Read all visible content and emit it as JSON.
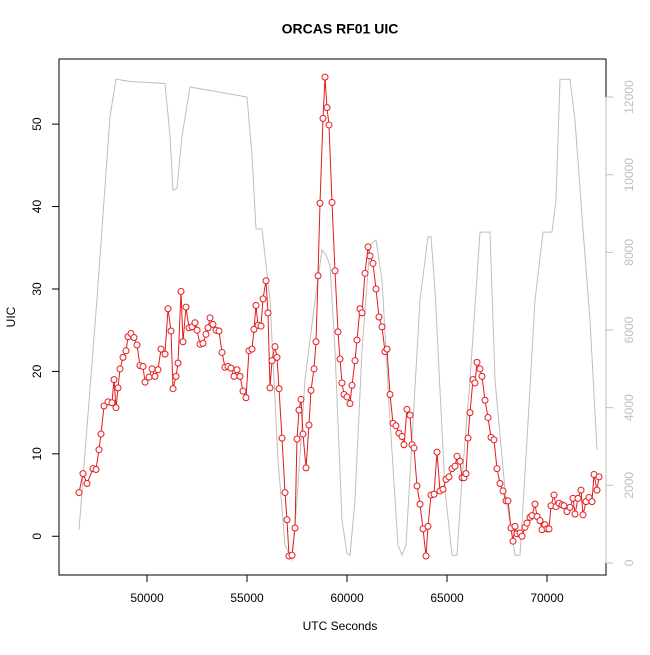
{
  "chart_data": {
    "type": "line",
    "title": "ORCAS RF01 UIC",
    "xlabel": "UTC Seconds",
    "ylabel": "UIC",
    "xlim": [
      45600,
      72950
    ],
    "xticks": [
      50000,
      55000,
      60000,
      65000,
      70000
    ],
    "ylim": [
      -4.7,
      57.9
    ],
    "yticks": [
      0,
      10,
      20,
      30,
      40,
      50
    ],
    "y2lim": [
      -310,
      12980
    ],
    "y2ticks": [
      0,
      2000,
      4000,
      6000,
      8000,
      10000,
      12000
    ],
    "series": [
      {
        "color": "#e41a1c",
        "markers": true,
        "x": [
          46600,
          46800,
          47000,
          47300,
          47450,
          47600,
          47700,
          47850,
          48050,
          48250,
          48350,
          48450,
          48550,
          48650,
          48800,
          48950,
          49050,
          49200,
          49350,
          49500,
          49650,
          49800,
          49900,
          50100,
          50250,
          50400,
          50550,
          50700,
          50900,
          51050,
          51200,
          51300,
          51450,
          51550,
          51700,
          51800,
          51950,
          52100,
          52250,
          52400,
          52500,
          52650,
          52800,
          52950,
          53050,
          53150,
          53300,
          53450,
          53600,
          53750,
          53900,
          54050,
          54200,
          54350,
          54500,
          54650,
          54800,
          54950,
          55100,
          55250,
          55350,
          55450,
          55550,
          55700,
          55800,
          55950,
          56050,
          56150,
          56250,
          56400,
          56500,
          56600,
          56750,
          56900,
          57000,
          57100,
          57250,
          57400,
          57500,
          57600,
          57700,
          57800,
          57950,
          58100,
          58200,
          58350,
          58450,
          58550,
          58650,
          58800,
          58900,
          59000,
          59100,
          59250,
          59400,
          59550,
          59650,
          59750,
          59850,
          60000,
          60150,
          60250,
          60400,
          60500,
          60650,
          60750,
          60900,
          61050,
          61150,
          61300,
          61450,
          61600,
          61750,
          61900,
          62000,
          62150,
          62300,
          62450,
          62600,
          62750,
          62850,
          63000,
          63150,
          63250,
          63350,
          63500,
          63650,
          63800,
          63950,
          64050,
          64200,
          64350,
          64500,
          64650,
          64800,
          64950,
          65100,
          65250,
          65400,
          65500,
          65650,
          65750,
          65850,
          65950,
          66050,
          66150,
          66300,
          66400,
          66500,
          66650,
          66750,
          66900,
          67050,
          67200,
          67350,
          67500,
          67650,
          67800,
          67950,
          68050,
          68200,
          68300,
          68400,
          68500,
          68650,
          68750,
          68900,
          69000,
          69150,
          69250,
          69400,
          69500,
          69650,
          69750,
          69900,
          70000,
          70100,
          70200,
          70350,
          70450,
          70600,
          70750,
          70850,
          71000,
          71150,
          71300,
          71400,
          71550,
          71700,
          71800,
          71950,
          72100,
          72250,
          72350,
          72500,
          72600
        ],
        "values": [
          5.3,
          7.6,
          6.4,
          8.2,
          8.1,
          10.5,
          12.4,
          15.8,
          16.3,
          16.2,
          19,
          15.6,
          18,
          20.3,
          21.7,
          22.5,
          24.2,
          24.6,
          24.1,
          23.2,
          20.7,
          20.6,
          18.7,
          19.3,
          20.3,
          19.4,
          20.2,
          22.7,
          22.1,
          27.6,
          24.9,
          17.9,
          19.4,
          21,
          29.7,
          23.6,
          27.8,
          25.3,
          25.4,
          25.9,
          25,
          23.3,
          23.4,
          24.5,
          25.3,
          26.5,
          25.7,
          25,
          24.9,
          22.3,
          20.5,
          20.6,
          20.4,
          19.4,
          20.2,
          19.4,
          17.6,
          16.8,
          22.5,
          22.7,
          25.1,
          28,
          25.6,
          25.5,
          28.8,
          31,
          27.1,
          18,
          21.3,
          23,
          21.7,
          17.9,
          11.9,
          5.3,
          2,
          -2.4,
          -2.3,
          1,
          11.8,
          15.3,
          16.6,
          12.4,
          8.3,
          13.5,
          17.7,
          20.3,
          23.6,
          31.6,
          40.4,
          50.7,
          55.7,
          52,
          49.9,
          40.5,
          32.2,
          24.8,
          21.5,
          18.6,
          17.2,
          16.9,
          16.1,
          18.3,
          21.3,
          23.8,
          27.6,
          27.1,
          31.9,
          35.1,
          34,
          33.1,
          30,
          26.6,
          25.4,
          22.4,
          22.7,
          17.2,
          13.7,
          13.4,
          12.5,
          12.1,
          11.1,
          15.4,
          14.7,
          11.1,
          10.7,
          6.1,
          3.9,
          0.9,
          -2.4,
          1.2,
          5,
          5.1,
          10.2,
          5.5,
          5.7,
          6.9,
          7.2,
          8.2,
          8.5,
          9.7,
          9.1,
          7.1,
          7.1,
          7.6,
          11.9,
          15,
          19,
          18.6,
          21.1,
          20.3,
          19.4,
          16.5,
          14.4,
          12,
          11.7,
          8.2,
          6.4,
          5.5,
          4.3,
          4.3,
          1,
          -0.6,
          1.2,
          0.3,
          0.4,
          0,
          1.1,
          1.6,
          2.3,
          2.5,
          3.9,
          2.4,
          1.9,
          0.8,
          1.4,
          0.9,
          0.9,
          3.7,
          5,
          3.6,
          4,
          3.8,
          3.7,
          3,
          3.5,
          4.6,
          2.7,
          4.6,
          5.6,
          2.6,
          4.2,
          4.7,
          4.2,
          7.5,
          5.6,
          7.2
        ]
      },
      {
        "color": "#bebebe",
        "axis": "y2",
        "markers": false,
        "x": [
          46600,
          47500,
          48150,
          48450,
          49150,
          50900,
          51150,
          51300,
          51500,
          51750,
          52150,
          55000,
          55250,
          55450,
          55750,
          56150,
          56550,
          56900,
          57250,
          57500,
          57900,
          58400,
          58750,
          58950,
          59150,
          59400,
          59750,
          60000,
          60150,
          60400,
          60750,
          61150,
          61450,
          61750,
          62150,
          62550,
          62750,
          62950,
          63250,
          63650,
          64050,
          64200,
          64400,
          64900,
          65250,
          65500,
          65750,
          66150,
          66650,
          67150,
          67400,
          67900,
          68400,
          68650,
          69000,
          69400,
          69800,
          70250,
          70450,
          70650,
          71150,
          71400,
          71800,
          72150,
          72500
        ],
        "values": [
          850,
          6800,
          11500,
          12460,
          12400,
          12350,
          11000,
          9600,
          9650,
          11000,
          12260,
          12000,
          10500,
          8600,
          8600,
          6770,
          2650,
          460,
          80,
          1620,
          4710,
          6770,
          8060,
          7930,
          7670,
          5480,
          1100,
          250,
          200,
          1620,
          5480,
          8190,
          8320,
          7290,
          3680,
          460,
          200,
          460,
          3170,
          6770,
          8400,
          8400,
          7030,
          1880,
          200,
          200,
          2140,
          4710,
          8520,
          8520,
          4710,
          1880,
          200,
          200,
          3170,
          6770,
          8520,
          8520,
          9350,
          12460,
          12460,
          11400,
          8580,
          6260,
          2910
        ]
      }
    ]
  }
}
